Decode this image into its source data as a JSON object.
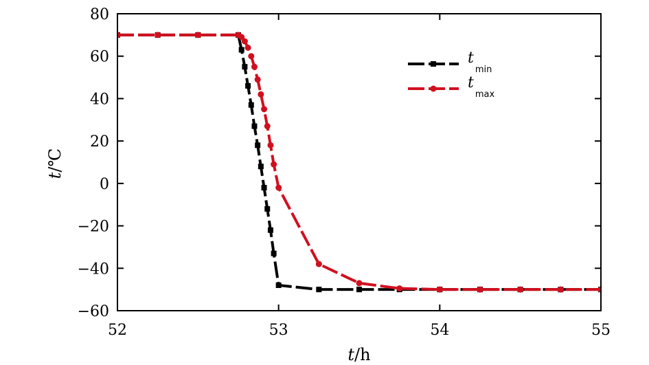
{
  "chart_data": {
    "type": "line",
    "xlabel": {
      "var": "t",
      "unit": "/h"
    },
    "ylabel": {
      "var": "t",
      "unit": "/℃"
    },
    "xlim": [
      52,
      55
    ],
    "ylim": [
      -60,
      80
    ],
    "xticks": [
      52,
      53,
      54,
      55
    ],
    "yticks": [
      80,
      60,
      40,
      20,
      0,
      -20,
      -40,
      -60
    ],
    "ytick_labels": [
      "80",
      "60",
      "40",
      "20",
      "0",
      "−20",
      "−40",
      "−60"
    ],
    "legend_position": "top-right",
    "grid": false,
    "series": [
      {
        "name": "t",
        "sub": "min",
        "color": "#000000",
        "marker": "square",
        "style": "dashed",
        "x": [
          52,
          52.25,
          52.5,
          52.75,
          52.77,
          52.79,
          52.81,
          52.83,
          52.85,
          52.87,
          52.89,
          52.91,
          52.93,
          52.95,
          52.97,
          53.0,
          53.25,
          53.5,
          53.75,
          54.0,
          54.25,
          54.5,
          54.75,
          55.0
        ],
        "y": [
          70,
          70,
          70,
          70,
          63,
          55,
          46,
          37,
          27,
          18,
          8,
          -2,
          -12,
          -22,
          -33,
          -48,
          -50,
          -50,
          -50,
          -50,
          -50,
          -50,
          -50,
          -50
        ]
      },
      {
        "name": "t",
        "sub": "max",
        "color": "#d0101f",
        "marker": "circle",
        "style": "dashed",
        "x": [
          52,
          52.25,
          52.5,
          52.75,
          52.77,
          52.79,
          52.81,
          52.83,
          52.85,
          52.87,
          52.89,
          52.91,
          52.93,
          52.95,
          52.97,
          53.0,
          53.25,
          53.5,
          53.75,
          54.0,
          54.25,
          54.5,
          54.75,
          55.0
        ],
        "y": [
          70,
          70,
          70,
          70,
          69,
          67,
          64,
          60,
          55,
          49,
          42,
          35,
          27,
          18,
          9,
          -2,
          -38,
          -47,
          -49.5,
          -50,
          -50,
          -50,
          -50,
          -50
        ]
      }
    ]
  }
}
